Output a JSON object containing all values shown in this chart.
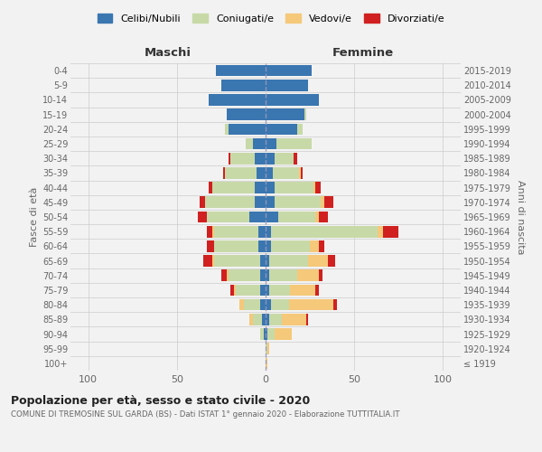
{
  "age_groups": [
    "100+",
    "95-99",
    "90-94",
    "85-89",
    "80-84",
    "75-79",
    "70-74",
    "65-69",
    "60-64",
    "55-59",
    "50-54",
    "45-49",
    "40-44",
    "35-39",
    "30-34",
    "25-29",
    "20-24",
    "15-19",
    "10-14",
    "5-9",
    "0-4"
  ],
  "birth_years": [
    "≤ 1919",
    "1920-1924",
    "1925-1929",
    "1930-1934",
    "1935-1939",
    "1940-1944",
    "1945-1949",
    "1950-1954",
    "1955-1959",
    "1960-1964",
    "1965-1969",
    "1970-1974",
    "1975-1979",
    "1980-1984",
    "1985-1989",
    "1990-1994",
    "1995-1999",
    "2000-2004",
    "2005-2009",
    "2010-2014",
    "2015-2019"
  ],
  "maschi_celibi": [
    0,
    0,
    1,
    2,
    3,
    3,
    3,
    3,
    4,
    4,
    9,
    6,
    6,
    5,
    6,
    7,
    21,
    22,
    32,
    25,
    28
  ],
  "maschi_coniugati": [
    0,
    0,
    2,
    5,
    9,
    14,
    18,
    26,
    25,
    25,
    24,
    28,
    24,
    18,
    14,
    4,
    2,
    0,
    0,
    0,
    0
  ],
  "maschi_vedovi": [
    0,
    0,
    0,
    2,
    3,
    1,
    1,
    1,
    0,
    1,
    0,
    0,
    0,
    0,
    0,
    0,
    0,
    0,
    0,
    0,
    0
  ],
  "maschi_divorziati": [
    0,
    0,
    0,
    0,
    0,
    2,
    3,
    5,
    4,
    3,
    5,
    3,
    2,
    1,
    1,
    0,
    0,
    0,
    0,
    0,
    0
  ],
  "femmine_celibi": [
    0,
    0,
    1,
    2,
    3,
    2,
    2,
    2,
    3,
    3,
    7,
    5,
    5,
    4,
    5,
    6,
    18,
    22,
    30,
    24,
    26
  ],
  "femmine_coniugati": [
    0,
    1,
    4,
    7,
    10,
    12,
    16,
    22,
    22,
    60,
    21,
    26,
    22,
    15,
    11,
    20,
    3,
    1,
    0,
    0,
    0
  ],
  "femmine_vedovi": [
    1,
    1,
    10,
    14,
    25,
    14,
    12,
    11,
    5,
    3,
    2,
    2,
    1,
    1,
    0,
    0,
    0,
    0,
    0,
    0,
    0
  ],
  "femmine_divorziati": [
    0,
    0,
    0,
    1,
    2,
    2,
    2,
    4,
    3,
    9,
    5,
    5,
    3,
    1,
    2,
    0,
    0,
    0,
    0,
    0,
    0
  ],
  "colors": {
    "celibi": "#3a76b0",
    "coniugati": "#c8d9a8",
    "vedovi": "#f5c87a",
    "divorziati": "#d02020"
  },
  "title": "Popolazione per età, sesso e stato civile - 2020",
  "subtitle": "COMUNE DI TREMOSINE SUL GARDA (BS) - Dati ISTAT 1° gennaio 2020 - Elaborazione TUTTITALIA.IT",
  "xlabel_maschi": "Maschi",
  "xlabel_femmine": "Femmine",
  "ylabel": "Fasce di età",
  "ylabel_right": "Anni di nascita",
  "xlim": 110,
  "legend_labels": [
    "Celibi/Nubili",
    "Coniugati/e",
    "Vedovi/e",
    "Divorziati/e"
  ],
  "bg_color": "#f2f2f2",
  "axes_bg": "#f2f2f2"
}
